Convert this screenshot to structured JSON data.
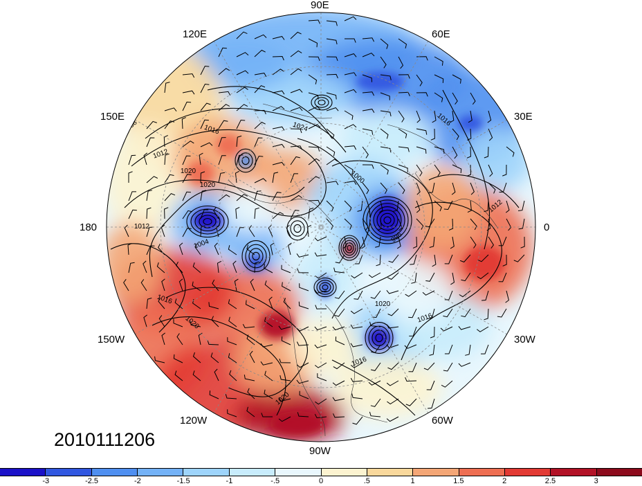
{
  "map": {
    "projection": "north-polar-stereographic",
    "field_shaded": "anomaly",
    "contour_field": "sea-level pressure",
    "longitude_labels": [
      "90E",
      "60E",
      "30E",
      "0",
      "30W",
      "60W",
      "90W",
      "120W",
      "150W",
      "180",
      "150E",
      "120E"
    ],
    "contour_labels": [
      "1008",
      "1012",
      "1016",
      "1020",
      "1024",
      "1000",
      "996",
      "1004"
    ],
    "date_label": "2010111206"
  },
  "colorbar": {
    "ticks": [
      "-3",
      "-2.5",
      "-2",
      "-1.5",
      "-1",
      "-.5",
      "0",
      ".5",
      "1",
      "1.5",
      "2",
      "2.5",
      "3"
    ],
    "colors": [
      "#1b11c8",
      "#3157e0",
      "#4f8ff0",
      "#74b2f7",
      "#9ed4fb",
      "#c8ecfc",
      "#e9f7fd",
      "#fcf3d0",
      "#f9d89c",
      "#f4a676",
      "#ee6e52",
      "#e23a34",
      "#b21226",
      "#8c0a1c"
    ]
  }
}
